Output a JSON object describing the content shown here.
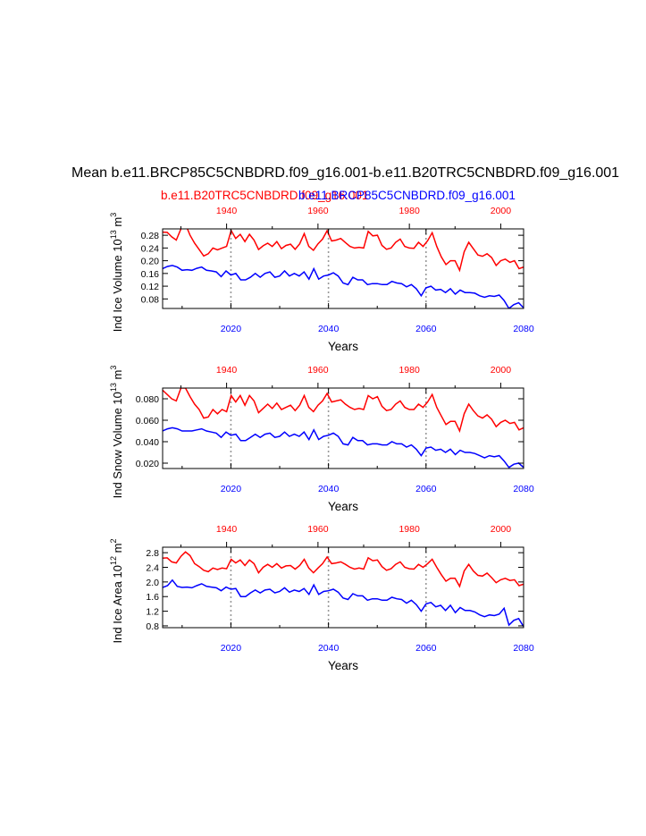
{
  "title": "Mean b.e11.BRCP85C5CNBDRD.f09_g16.001-b.e11.B20TRC5CNBDRD.f09_g16.001",
  "legend": {
    "red": "b.e11.B20TRC5CNBDRD.f09_g16.001",
    "blue": "b.e11.BRCP85C5CNBDRD.f09_g16.001"
  },
  "colors": {
    "red": "#ff0000",
    "blue": "#0000ff",
    "axis": "#000000",
    "grid": "#999999"
  },
  "chart_data": [
    {
      "type": "line",
      "xlabel": "Years",
      "ylabel": "Ind Ice Volume 10^13 m^3",
      "ylabel_parts": [
        "Ind Ice Volume 10",
        "13",
        " m",
        "3"
      ],
      "ylim": [
        0.05,
        0.3
      ],
      "yticks": [
        0.08,
        0.12,
        0.16,
        0.2,
        0.24,
        0.28
      ],
      "ytick_labels": [
        "0.08",
        "0.12",
        "0.16",
        "0.20",
        "0.24",
        "0.28"
      ],
      "bottom_axis": {
        "range": [
          2006,
          2080
        ],
        "ticks": [
          2020,
          2040,
          2060,
          2080
        ],
        "labels": [
          "2020",
          "2040",
          "2060",
          "2080"
        ]
      },
      "top_axis": {
        "range": [
          1926,
          2005
        ],
        "ticks": [
          1940,
          1960,
          1980,
          2000
        ],
        "labels": [
          "1940",
          "1960",
          "1980",
          "2000"
        ]
      },
      "grid_x": [
        2020,
        2040,
        2060
      ],
      "series": [
        {
          "color": "red",
          "x_start": 1926,
          "values": [
            0.29,
            0.289,
            0.275,
            0.265,
            0.3,
            0.315,
            0.28,
            0.255,
            0.235,
            0.215,
            0.222,
            0.24,
            0.234,
            0.24,
            0.245,
            0.295,
            0.27,
            0.283,
            0.26,
            0.283,
            0.265,
            0.235,
            0.247,
            0.255,
            0.245,
            0.26,
            0.238,
            0.248,
            0.252,
            0.236,
            0.253,
            0.285,
            0.245,
            0.233,
            0.253,
            0.268,
            0.294,
            0.262,
            0.265,
            0.27,
            0.257,
            0.245,
            0.24,
            0.242,
            0.24,
            0.292,
            0.278,
            0.28,
            0.248,
            0.236,
            0.24,
            0.258,
            0.268,
            0.245,
            0.24,
            0.239,
            0.258,
            0.245,
            0.263,
            0.288,
            0.245,
            0.212,
            0.188,
            0.2,
            0.2,
            0.17,
            0.228,
            0.258,
            0.238,
            0.218,
            0.214,
            0.222,
            0.21,
            0.185,
            0.2,
            0.205,
            0.195,
            0.2,
            0.175,
            0.18,
            0.15,
            0.17
          ]
        },
        {
          "color": "blue",
          "x_start": 2006,
          "values": [
            0.175,
            0.182,
            0.185,
            0.18,
            0.17,
            0.172,
            0.17,
            0.176,
            0.18,
            0.17,
            0.168,
            0.165,
            0.15,
            0.168,
            0.155,
            0.16,
            0.14,
            0.14,
            0.148,
            0.16,
            0.148,
            0.16,
            0.165,
            0.148,
            0.152,
            0.168,
            0.152,
            0.16,
            0.152,
            0.165,
            0.142,
            0.175,
            0.142,
            0.152,
            0.155,
            0.162,
            0.152,
            0.13,
            0.125,
            0.148,
            0.14,
            0.14,
            0.125,
            0.128,
            0.128,
            0.125,
            0.125,
            0.135,
            0.13,
            0.128,
            0.118,
            0.125,
            0.112,
            0.09,
            0.115,
            0.12,
            0.108,
            0.11,
            0.1,
            0.112,
            0.095,
            0.108,
            0.1,
            0.1,
            0.098,
            0.09,
            0.085,
            0.09,
            0.088,
            0.092,
            0.075,
            0.05,
            0.062,
            0.068,
            0.052,
            0.055,
            0.058
          ]
        }
      ]
    },
    {
      "type": "line",
      "xlabel": "Years",
      "ylabel": "Ind Snow Volume 10^13 m^3",
      "ylabel_parts": [
        "Ind Snow Volume 10",
        "13",
        " m",
        "3"
      ],
      "ylim": [
        0.015,
        0.09
      ],
      "yticks": [
        0.02,
        0.04,
        0.06,
        0.08
      ],
      "ytick_labels": [
        "0.020",
        "0.040",
        "0.060",
        "0.080"
      ],
      "bottom_axis": {
        "range": [
          2006,
          2080
        ],
        "ticks": [
          2020,
          2040,
          2060,
          2080
        ],
        "labels": [
          "2020",
          "2040",
          "2060",
          "2080"
        ]
      },
      "top_axis": {
        "range": [
          1926,
          2005
        ],
        "ticks": [
          1940,
          1960,
          1980,
          2000
        ],
        "labels": [
          "1940",
          "1960",
          "1980",
          "2000"
        ]
      },
      "grid_x": [
        2020,
        2040,
        2060
      ],
      "series": [
        {
          "color": "red",
          "x_start": 1926,
          "values": [
            0.088,
            0.084,
            0.08,
            0.078,
            0.09,
            0.09,
            0.082,
            0.075,
            0.07,
            0.062,
            0.063,
            0.07,
            0.066,
            0.07,
            0.068,
            0.083,
            0.077,
            0.083,
            0.074,
            0.083,
            0.078,
            0.067,
            0.071,
            0.075,
            0.071,
            0.076,
            0.07,
            0.072,
            0.074,
            0.069,
            0.074,
            0.083,
            0.072,
            0.068,
            0.074,
            0.078,
            0.085,
            0.077,
            0.078,
            0.079,
            0.075,
            0.072,
            0.07,
            0.071,
            0.07,
            0.083,
            0.08,
            0.082,
            0.073,
            0.069,
            0.07,
            0.075,
            0.078,
            0.072,
            0.07,
            0.07,
            0.075,
            0.072,
            0.077,
            0.084,
            0.072,
            0.064,
            0.056,
            0.059,
            0.059,
            0.05,
            0.066,
            0.075,
            0.069,
            0.064,
            0.062,
            0.065,
            0.061,
            0.054,
            0.058,
            0.06,
            0.057,
            0.058,
            0.051,
            0.053,
            0.044,
            0.05
          ]
        },
        {
          "color": "blue",
          "x_start": 2006,
          "values": [
            0.05,
            0.052,
            0.053,
            0.052,
            0.05,
            0.05,
            0.05,
            0.051,
            0.052,
            0.05,
            0.049,
            0.048,
            0.044,
            0.049,
            0.046,
            0.047,
            0.041,
            0.041,
            0.044,
            0.047,
            0.044,
            0.047,
            0.048,
            0.044,
            0.045,
            0.049,
            0.045,
            0.047,
            0.045,
            0.049,
            0.042,
            0.051,
            0.042,
            0.045,
            0.046,
            0.048,
            0.045,
            0.038,
            0.037,
            0.044,
            0.041,
            0.041,
            0.037,
            0.038,
            0.038,
            0.037,
            0.037,
            0.04,
            0.038,
            0.038,
            0.035,
            0.037,
            0.033,
            0.027,
            0.034,
            0.035,
            0.032,
            0.033,
            0.03,
            0.033,
            0.028,
            0.032,
            0.03,
            0.03,
            0.029,
            0.027,
            0.025,
            0.027,
            0.026,
            0.027,
            0.022,
            0.016,
            0.019,
            0.02,
            0.016,
            0.017,
            0.017
          ]
        }
      ]
    },
    {
      "type": "line",
      "xlabel": "Years",
      "ylabel": "Ind Ice Area 10^12 m^2",
      "ylabel_parts": [
        "Ind Ice Area 10",
        "12",
        " m",
        "2"
      ],
      "ylim": [
        0.75,
        2.95
      ],
      "yticks": [
        0.8,
        1.2,
        1.6,
        2.0,
        2.4,
        2.8
      ],
      "ytick_labels": [
        "0.8",
        "1.2",
        "1.6",
        "2.0",
        "2.4",
        "2.8"
      ],
      "bottom_axis": {
        "range": [
          2006,
          2080
        ],
        "ticks": [
          2020,
          2040,
          2060,
          2080
        ],
        "labels": [
          "2020",
          "2040",
          "2060",
          "2080"
        ]
      },
      "top_axis": {
        "range": [
          1926,
          2005
        ],
        "ticks": [
          1940,
          1960,
          1980,
          2000
        ],
        "labels": [
          "1940",
          "1960",
          "1980",
          "2000"
        ]
      },
      "grid_x": [
        2020,
        2040,
        2060
      ],
      "series": [
        {
          "color": "red",
          "x_start": 1926,
          "values": [
            2.65,
            2.66,
            2.55,
            2.52,
            2.7,
            2.82,
            2.72,
            2.5,
            2.42,
            2.32,
            2.28,
            2.38,
            2.34,
            2.38,
            2.36,
            2.62,
            2.52,
            2.6,
            2.45,
            2.6,
            2.5,
            2.25,
            2.4,
            2.48,
            2.4,
            2.5,
            2.38,
            2.44,
            2.45,
            2.35,
            2.45,
            2.62,
            2.38,
            2.25,
            2.38,
            2.5,
            2.68,
            2.5,
            2.52,
            2.55,
            2.48,
            2.4,
            2.35,
            2.38,
            2.35,
            2.66,
            2.58,
            2.6,
            2.42,
            2.32,
            2.36,
            2.48,
            2.55,
            2.4,
            2.36,
            2.35,
            2.48,
            2.4,
            2.5,
            2.62,
            2.4,
            2.2,
            2.02,
            2.1,
            2.1,
            1.88,
            2.3,
            2.48,
            2.3,
            2.18,
            2.16,
            2.24,
            2.12,
            1.98,
            2.06,
            2.1,
            2.04,
            2.06,
            1.9,
            1.94,
            1.8,
            1.86
          ]
        },
        {
          "color": "blue",
          "x_start": 2006,
          "values": [
            1.85,
            1.9,
            2.05,
            1.88,
            1.85,
            1.86,
            1.84,
            1.9,
            1.95,
            1.88,
            1.86,
            1.84,
            1.76,
            1.86,
            1.8,
            1.82,
            1.6,
            1.6,
            1.7,
            1.78,
            1.7,
            1.78,
            1.8,
            1.7,
            1.74,
            1.84,
            1.72,
            1.78,
            1.74,
            1.82,
            1.66,
            1.92,
            1.66,
            1.74,
            1.76,
            1.8,
            1.72,
            1.56,
            1.52,
            1.68,
            1.62,
            1.62,
            1.5,
            1.54,
            1.54,
            1.5,
            1.5,
            1.58,
            1.54,
            1.52,
            1.42,
            1.5,
            1.38,
            1.2,
            1.4,
            1.44,
            1.32,
            1.36,
            1.22,
            1.36,
            1.16,
            1.3,
            1.22,
            1.22,
            1.18,
            1.1,
            1.05,
            1.1,
            1.08,
            1.12,
            1.28,
            0.82,
            0.95,
            1.0,
            0.78,
            0.8,
            0.82
          ]
        }
      ]
    }
  ]
}
